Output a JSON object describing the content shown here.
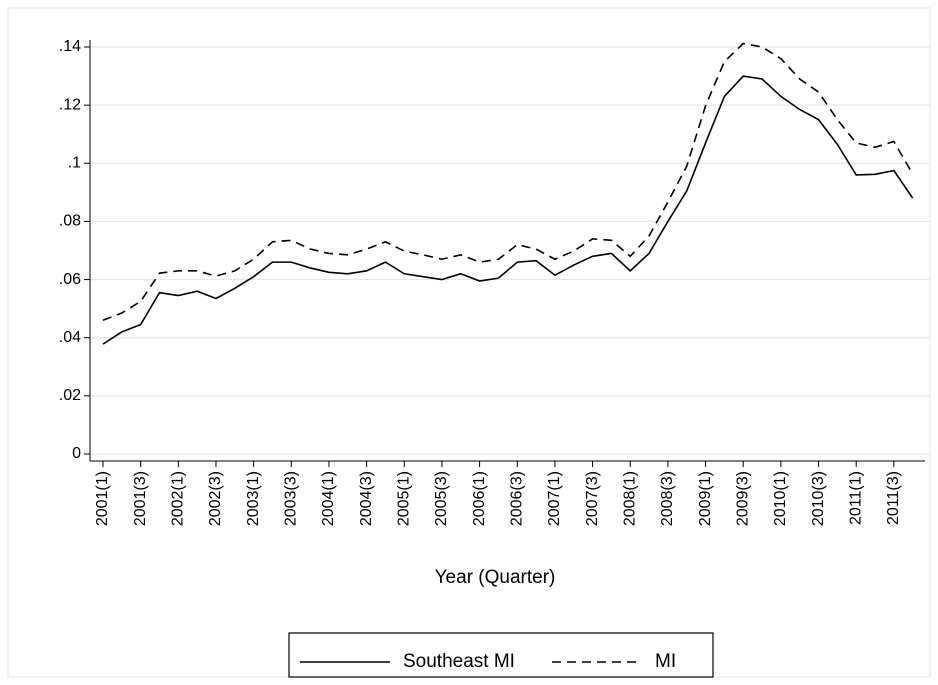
{
  "chart_data": {
    "type": "line",
    "x_label": "Year (Quarter)",
    "categories": [
      "2001(1)",
      null,
      "2001(3)",
      null,
      "2002(1)",
      null,
      "2002(3)",
      null,
      "2003(1)",
      null,
      "2003(3)",
      null,
      "2004(1)",
      null,
      "2004(3)",
      null,
      "2005(1)",
      null,
      "2005(3)",
      null,
      "2006(1)",
      null,
      "2006(3)",
      null,
      "2007(1)",
      null,
      "2007(3)",
      null,
      "2008(1)",
      null,
      "2008(3)",
      null,
      "2009(1)",
      null,
      "2009(3)",
      null,
      "2010(1)",
      null,
      "2010(3)",
      null,
      "2011(1)",
      null,
      "2011(3)",
      null
    ],
    "series": [
      {
        "name": "Southeast MI",
        "color": "#000000",
        "dash": "solid",
        "values": [
          0.0378,
          0.042,
          0.0445,
          0.0555,
          0.0545,
          0.056,
          0.0535,
          0.057,
          0.061,
          0.066,
          0.066,
          0.064,
          0.0625,
          0.062,
          0.063,
          0.066,
          0.062,
          0.061,
          0.06,
          0.062,
          0.0595,
          0.0605,
          0.066,
          0.0665,
          0.0615,
          0.065,
          0.068,
          0.069,
          0.063,
          0.069,
          0.08,
          0.0905,
          0.107,
          0.123,
          0.13,
          0.129,
          0.123,
          0.1185,
          0.115,
          0.1065,
          0.096,
          0.0962,
          0.0975,
          0.088
        ]
      },
      {
        "name": "MI",
        "color": "#000000",
        "dash": "dashed",
        "values": [
          0.046,
          0.0485,
          0.0525,
          0.0622,
          0.063,
          0.063,
          0.0612,
          0.063,
          0.067,
          0.073,
          0.0735,
          0.0705,
          0.069,
          0.0685,
          0.0705,
          0.073,
          0.0698,
          0.0685,
          0.067,
          0.0685,
          0.066,
          0.067,
          0.072,
          0.0705,
          0.067,
          0.0698,
          0.074,
          0.0735,
          0.068,
          0.075,
          0.0867,
          0.099,
          0.1198,
          0.135,
          0.1412,
          0.14,
          0.136,
          0.129,
          0.1245,
          0.115,
          0.107,
          0.1055,
          0.1075,
          0.0963
        ]
      }
    ],
    "ylim": [
      0,
      0.14
    ],
    "yticks": [
      0,
      {
        "value": 0.02,
        "label": ".02"
      },
      {
        "value": 0.04,
        "label": ".04"
      },
      {
        "value": 0.06,
        "label": ".06"
      },
      {
        "value": 0.08,
        "label": ".08"
      },
      {
        "value": 0.1,
        "label": ".1"
      },
      {
        "value": 0.12,
        "label": ".12"
      },
      {
        "value": 0.14,
        "label": ".14"
      }
    ],
    "grid": true,
    "legend": "bottom"
  }
}
